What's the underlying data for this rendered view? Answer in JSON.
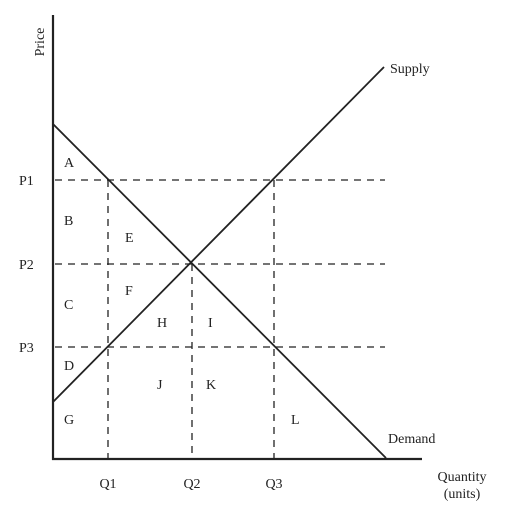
{
  "axes": {
    "y_label": "Price",
    "x_label_line1": "Quantity",
    "x_label_line2": "(units)"
  },
  "price_labels": {
    "p1": "P1",
    "p2": "P2",
    "p3": "P3"
  },
  "quantity_labels": {
    "q1": "Q1",
    "q2": "Q2",
    "q3": "Q3"
  },
  "curves": {
    "supply": "Supply",
    "demand": "Demand"
  },
  "areas": {
    "a": "A",
    "b": "B",
    "c": "C",
    "d": "D",
    "e": "E",
    "f": "F",
    "g": "G",
    "h": "H",
    "i": "I",
    "j": "J",
    "k": "K",
    "l": "L"
  }
}
